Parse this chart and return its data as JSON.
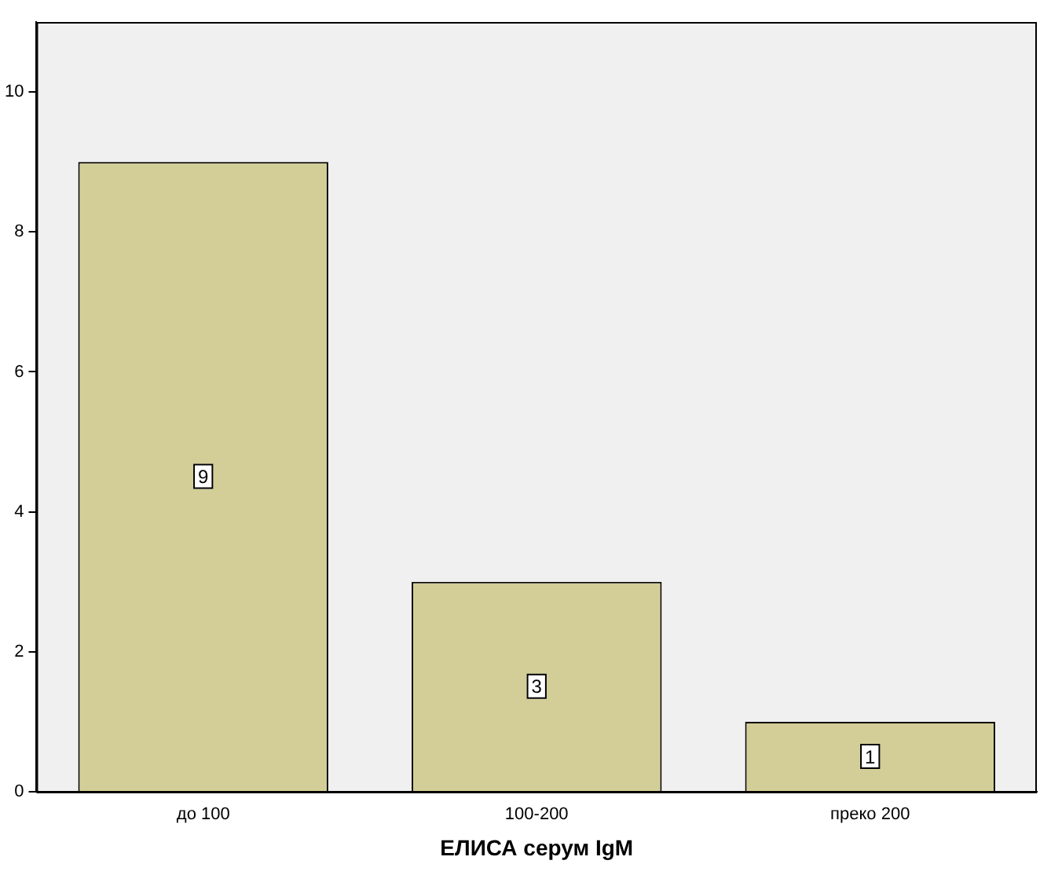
{
  "chart_data": {
    "type": "bar",
    "xlabel": "ЕЛИСА серум IgM",
    "categories": [
      "до 100",
      "100-200",
      "преко 200"
    ],
    "values": [
      9,
      3,
      1
    ],
    "color": "#d3ce97",
    "ylim": [
      0,
      11
    ],
    "yticks": [
      0,
      2,
      4,
      6,
      8,
      10
    ],
    "grid": false,
    "legend": false,
    "data_labels": true
  }
}
